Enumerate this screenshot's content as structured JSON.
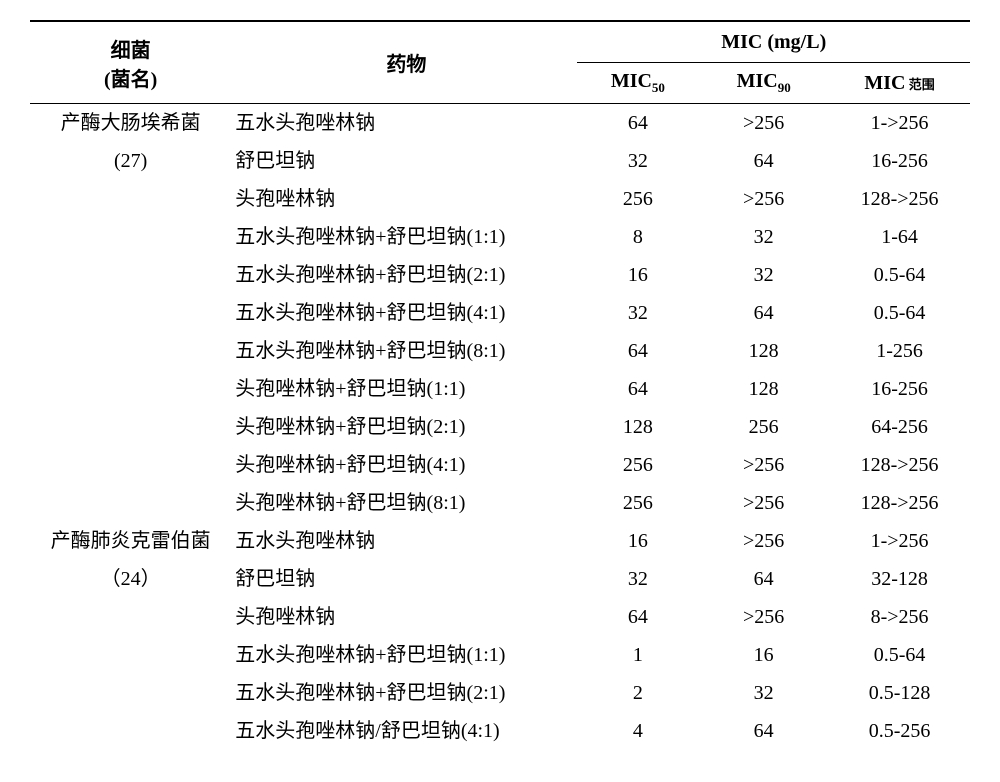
{
  "header": {
    "bacteria_line1": "细菌",
    "bacteria_line2": "(菌名)",
    "drug": "药物",
    "mic_group": "MIC (mg/L)",
    "mic50_pre": "MIC",
    "mic50_sub": "50",
    "mic90_pre": "MIC",
    "mic90_sub": "90",
    "micrange_pre": "MIC",
    "micrange_sub": " 范围"
  },
  "groups": [
    {
      "bacteria_line1": "产酶大肠埃希菌",
      "bacteria_line2": "(27)",
      "rows": [
        {
          "drug": "五水头孢唑林钠",
          "mic50": "64",
          "mic90": ">256",
          "range": "1->256"
        },
        {
          "drug": "舒巴坦钠",
          "mic50": "32",
          "mic90": "64",
          "range": "16-256"
        },
        {
          "drug": "头孢唑林钠",
          "mic50": "256",
          "mic90": ">256",
          "range": "128->256"
        },
        {
          "drug": "五水头孢唑林钠+舒巴坦钠(1:1)",
          "mic50": "8",
          "mic90": "32",
          "range": "1-64"
        },
        {
          "drug": "五水头孢唑林钠+舒巴坦钠(2:1)",
          "mic50": "16",
          "mic90": "32",
          "range": "0.5-64"
        },
        {
          "drug": "五水头孢唑林钠+舒巴坦钠(4:1)",
          "mic50": "32",
          "mic90": "64",
          "range": "0.5-64"
        },
        {
          "drug": "五水头孢唑林钠+舒巴坦钠(8:1)",
          "mic50": "64",
          "mic90": "128",
          "range": "1-256"
        },
        {
          "drug": "头孢唑林钠+舒巴坦钠(1:1)",
          "mic50": "64",
          "mic90": "128",
          "range": "16-256"
        },
        {
          "drug": "头孢唑林钠+舒巴坦钠(2:1)",
          "mic50": "128",
          "mic90": "256",
          "range": "64-256"
        },
        {
          "drug": "头孢唑林钠+舒巴坦钠(4:1)",
          "mic50": "256",
          "mic90": ">256",
          "range": "128->256"
        },
        {
          "drug": "头孢唑林钠+舒巴坦钠(8:1)",
          "mic50": "256",
          "mic90": ">256",
          "range": "128->256"
        }
      ]
    },
    {
      "bacteria_line1": "产酶肺炎克雷伯菌",
      "bacteria_line2": "（24）",
      "rows": [
        {
          "drug": "五水头孢唑林钠",
          "mic50": "16",
          "mic90": ">256",
          "range": "1->256"
        },
        {
          "drug": "舒巴坦钠",
          "mic50": "32",
          "mic90": "64",
          "range": "32-128"
        },
        {
          "drug": "头孢唑林钠",
          "mic50": "64",
          "mic90": ">256",
          "range": "8->256"
        },
        {
          "drug": "五水头孢唑林钠+舒巴坦钠(1:1)",
          "mic50": "1",
          "mic90": "16",
          "range": "0.5-64"
        },
        {
          "drug": "五水头孢唑林钠+舒巴坦钠(2:1)",
          "mic50": "2",
          "mic90": "32",
          "range": "0.5-128"
        },
        {
          "drug": "五水头孢唑林钠/舒巴坦钠(4:1)",
          "mic50": "4",
          "mic90": "64",
          "range": "0.5-256"
        }
      ]
    }
  ]
}
